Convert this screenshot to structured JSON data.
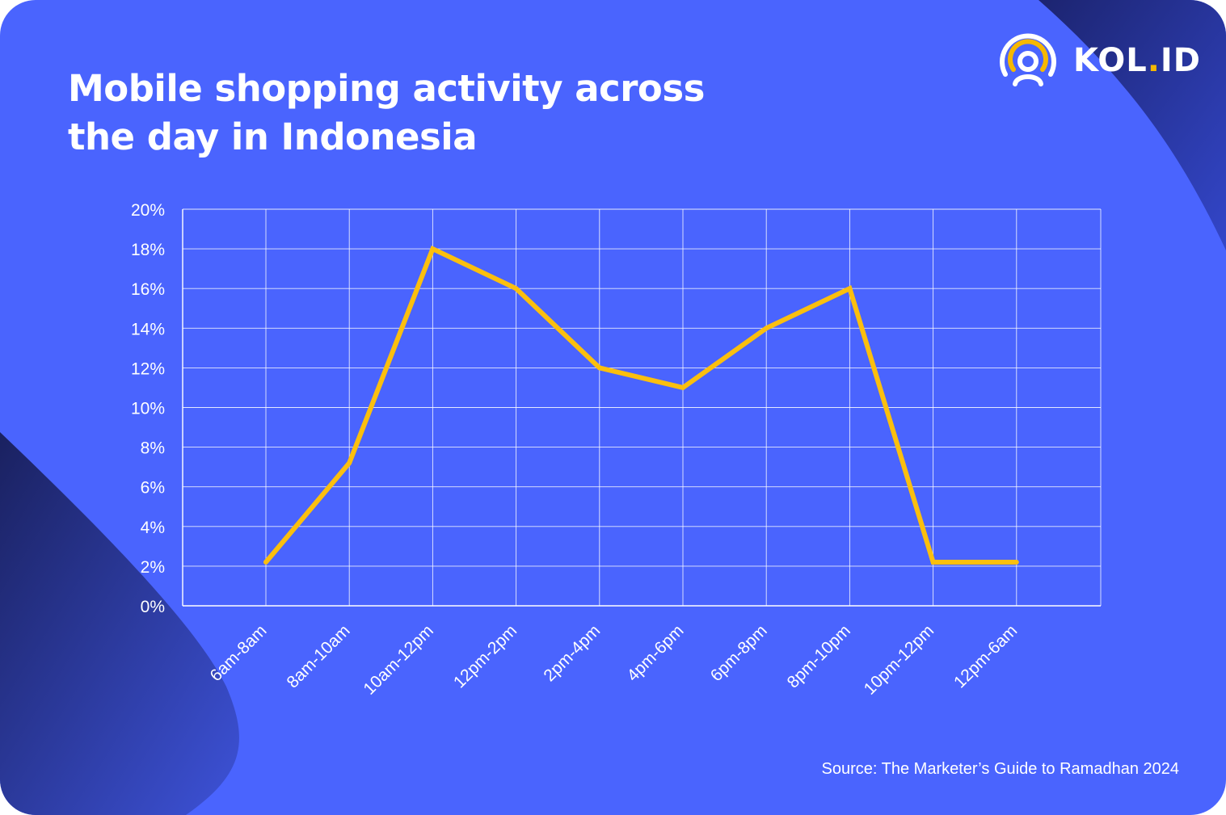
{
  "title_lines": [
    "Mobile shopping activity across",
    "the day in Indonesia"
  ],
  "logo": {
    "name": "KOL",
    "dot": ".",
    "suffix": "ID",
    "icon": "broadcast-person-icon"
  },
  "source": "Source: The Marketer’s Guide to Ramadhan 2024",
  "colors": {
    "background": "#4a64fe",
    "line": "#fbbf0e",
    "grid": "#ffffff",
    "text": "#ffffff",
    "logo_accent": "#f6b800"
  },
  "chart_data": {
    "type": "line",
    "title": "Mobile shopping activity across the day in Indonesia",
    "xlabel": "",
    "ylabel": "",
    "categories": [
      "6am-8am",
      "8am-10am",
      "10am-12pm",
      "12pm-2pm",
      "2pm-4pm",
      "4pm-6pm",
      "6pm-8pm",
      "8pm-10pm",
      "10pm-12pm",
      "12pm-6am"
    ],
    "series": [
      {
        "values": [
          2.2,
          7.2,
          18,
          16,
          12,
          11,
          14,
          16,
          2.2,
          2.2
        ]
      }
    ],
    "ylim": [
      0,
      20
    ],
    "yticks": [
      0,
      2,
      4,
      6,
      8,
      10,
      12,
      14,
      16,
      18,
      20
    ],
    "ytick_labels": [
      "0%",
      "2%",
      "4%",
      "6%",
      "8%",
      "10%",
      "12%",
      "14%",
      "16%",
      "18%",
      "20%"
    ],
    "grid": true,
    "legend": "none"
  }
}
